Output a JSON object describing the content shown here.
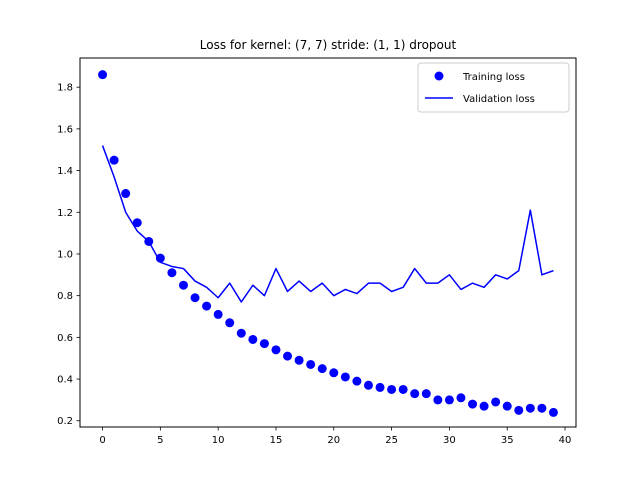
{
  "chart_data": {
    "type": "line",
    "title": "Loss for kernel: (7, 7) stride: (1, 1) dropout",
    "xlabel": "",
    "ylabel": "",
    "xlim": [
      -1.95,
      40.95
    ],
    "ylim": [
      0.17,
      1.94
    ],
    "x_ticks": [
      0,
      5,
      10,
      15,
      20,
      25,
      30,
      35,
      40
    ],
    "y_ticks": [
      0.2,
      0.4,
      0.6,
      0.8,
      1.0,
      1.2,
      1.4,
      1.6,
      1.8
    ],
    "y_tick_labels": [
      "0.2",
      "0.4",
      "0.6",
      "0.8",
      "1.0",
      "1.2",
      "1.4",
      "1.6",
      "1.8"
    ],
    "grid": false,
    "legend_position": "top-right",
    "series": [
      {
        "name": "Training loss",
        "style": "markers",
        "color": "#0000ff",
        "x": [
          0,
          1,
          2,
          3,
          4,
          5,
          6,
          7,
          8,
          9,
          10,
          11,
          12,
          13,
          14,
          15,
          16,
          17,
          18,
          19,
          20,
          21,
          22,
          23,
          24,
          25,
          26,
          27,
          28,
          29,
          30,
          31,
          32,
          33,
          34,
          35,
          36,
          37,
          38,
          39
        ],
        "y": [
          1.86,
          1.45,
          1.29,
          1.15,
          1.06,
          0.98,
          0.91,
          0.85,
          0.79,
          0.75,
          0.71,
          0.67,
          0.62,
          0.59,
          0.57,
          0.54,
          0.51,
          0.49,
          0.47,
          0.45,
          0.43,
          0.41,
          0.39,
          0.37,
          0.36,
          0.35,
          0.35,
          0.33,
          0.33,
          0.3,
          0.3,
          0.31,
          0.28,
          0.27,
          0.29,
          0.27,
          0.25,
          0.26,
          0.26,
          0.24
        ]
      },
      {
        "name": "Validation loss",
        "style": "line",
        "color": "#0000ff",
        "x": [
          0,
          1,
          2,
          3,
          4,
          5,
          6,
          7,
          8,
          9,
          10,
          11,
          12,
          13,
          14,
          15,
          16,
          17,
          18,
          19,
          20,
          21,
          22,
          23,
          24,
          25,
          26,
          27,
          28,
          29,
          30,
          31,
          32,
          33,
          34,
          35,
          36,
          37,
          38,
          39
        ],
        "y": [
          1.52,
          1.37,
          1.2,
          1.11,
          1.06,
          0.96,
          0.94,
          0.93,
          0.87,
          0.84,
          0.79,
          0.86,
          0.77,
          0.85,
          0.8,
          0.93,
          0.82,
          0.87,
          0.82,
          0.86,
          0.8,
          0.83,
          0.81,
          0.86,
          0.86,
          0.82,
          0.84,
          0.93,
          0.86,
          0.86,
          0.9,
          0.83,
          0.86,
          0.84,
          0.9,
          0.88,
          0.92,
          1.21,
          0.9,
          0.92
        ]
      }
    ]
  }
}
